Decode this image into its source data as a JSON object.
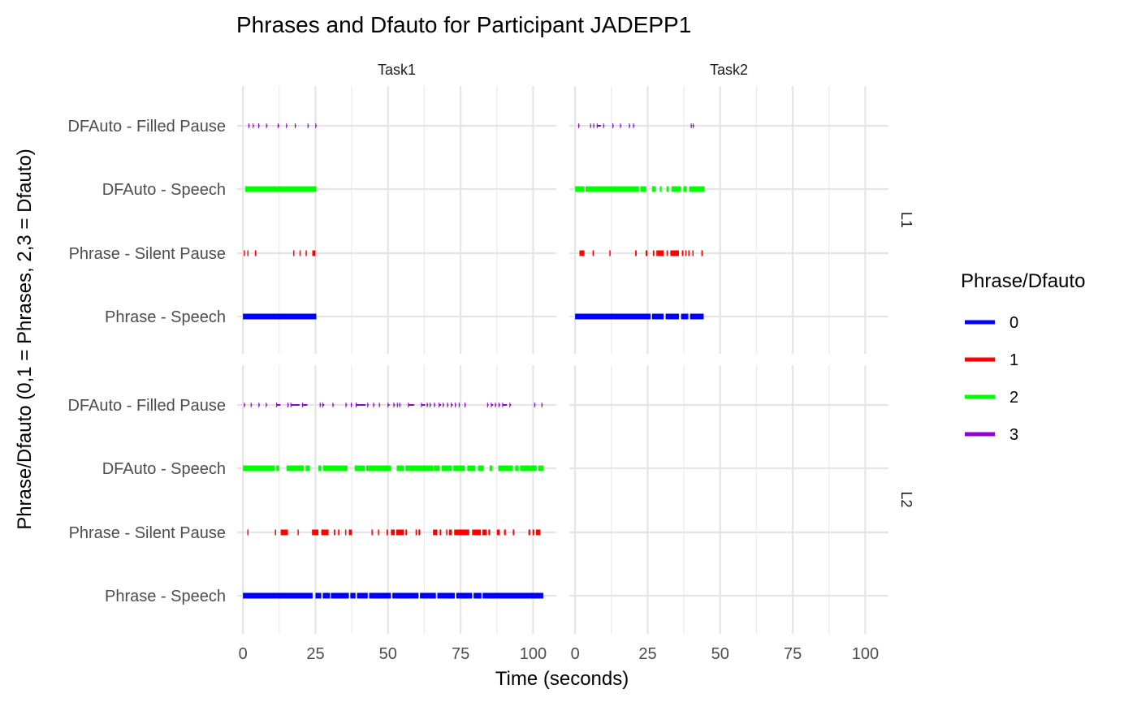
{
  "chart_data": {
    "type": "scatter",
    "title": "Phrases and Dfauto for Participant JADEPP1",
    "xlabel": "Time (seconds)",
    "ylabel": "Phrase/Dfauto (0,1 = Phrases, 2,3 = Dfauto)",
    "xlim": [
      -2,
      108
    ],
    "x_ticks": [
      0,
      25,
      50,
      75,
      100
    ],
    "grid": true,
    "facet_columns": [
      "Task1",
      "Task2"
    ],
    "facet_rows": [
      "L1",
      "L2"
    ],
    "categories": [
      "Phrase - Speech",
      "Phrase - Silent Pause",
      "DFAuto - Speech",
      "DFAuto - Filled Pause"
    ],
    "legend": {
      "title": "Phrase/Dfauto",
      "position": "right",
      "entries": [
        {
          "label": "0",
          "color": "#0000ff"
        },
        {
          "label": "1",
          "color": "#ff0000"
        },
        {
          "label": "2",
          "color": "#00ff00"
        },
        {
          "label": "3",
          "color": "#9400d3"
        }
      ]
    },
    "panels": [
      {
        "column": "Task1",
        "row": "L1",
        "series": [
          {
            "code": "0",
            "category": "Phrase - Speech",
            "segments": [
              [
                0,
                25.3
              ]
            ]
          },
          {
            "code": "1",
            "category": "Phrase - Silent Pause",
            "segments": [
              [
                0.3,
                0.7
              ],
              [
                1.5,
                1.9
              ],
              [
                4.1,
                4.6
              ],
              [
                17.3,
                17.7
              ],
              [
                19.5,
                19.9
              ],
              [
                21.6,
                22.0
              ],
              [
                23.9,
                25.0
              ]
            ]
          },
          {
            "code": "2",
            "category": "DFAuto - Speech",
            "segments": [
              [
                0.8,
                25.3
              ]
            ]
          },
          {
            "code": "3",
            "category": "DFAuto - Filled Pause",
            "segments": [
              [
                2.0,
                2.3
              ],
              [
                3.5,
                3.8
              ],
              [
                5.4,
                5.7
              ],
              [
                8.1,
                8.4
              ],
              [
                12.1,
                12.5
              ],
              [
                15.0,
                15.3
              ],
              [
                18.0,
                18.3
              ],
              [
                22.4,
                22.7
              ],
              [
                25.1,
                25.4
              ]
            ]
          }
        ]
      },
      {
        "column": "Task2",
        "row": "L1",
        "series": [
          {
            "code": "0",
            "category": "Phrase - Speech",
            "segments": [
              [
                0,
                26.0
              ],
              [
                26.5,
                30.5
              ],
              [
                31.2,
                35.8
              ],
              [
                36.5,
                39.0
              ],
              [
                39.6,
                44.3
              ]
            ]
          },
          {
            "code": "1",
            "category": "Phrase - Silent Pause",
            "segments": [
              [
                1.5,
                3.2
              ],
              [
                6.0,
                6.4
              ],
              [
                11.8,
                12.2
              ],
              [
                20.7,
                21.2
              ],
              [
                24.3,
                24.9
              ],
              [
                26.8,
                27.3
              ],
              [
                28.0,
                30.5
              ],
              [
                31.5,
                32.0
              ],
              [
                32.8,
                35.8
              ],
              [
                36.8,
                37.3
              ],
              [
                38.0,
                38.4
              ],
              [
                39.0,
                39.4
              ],
              [
                40.4,
                40.8
              ],
              [
                43.5,
                44.0
              ]
            ]
          },
          {
            "code": "2",
            "category": "DFAuto - Speech",
            "segments": [
              [
                0,
                3.2
              ],
              [
                3.6,
                22.0
              ],
              [
                22.5,
                24.5
              ],
              [
                26.5,
                27.8
              ],
              [
                29.2,
                29.8
              ],
              [
                31.5,
                32.2
              ],
              [
                33.2,
                36.5
              ],
              [
                37.3,
                38.5
              ],
              [
                39.3,
                44.6
              ]
            ]
          },
          {
            "code": "3",
            "category": "DFAuto - Filled Pause",
            "segments": [
              [
                1.2,
                1.5
              ],
              [
                5.3,
                5.6
              ],
              [
                6.4,
                6.7
              ],
              [
                7.6,
                8.9
              ],
              [
                9.8,
                10.1
              ],
              [
                13.0,
                13.3
              ],
              [
                15.6,
                15.9
              ],
              [
                18.7,
                19.0
              ],
              [
                20.1,
                20.4
              ],
              [
                40.0,
                40.3
              ],
              [
                40.7,
                41.0
              ]
            ]
          }
        ]
      },
      {
        "column": "Task1",
        "row": "L2",
        "series": [
          {
            "code": "0",
            "category": "Phrase - Speech",
            "segments": [
              [
                0,
                24.0
              ],
              [
                25.0,
                27.0
              ],
              [
                27.5,
                30.0
              ],
              [
                30.3,
                36.5
              ],
              [
                37.0,
                38.8
              ],
              [
                39.3,
                43.0
              ],
              [
                43.5,
                51.0
              ],
              [
                51.5,
                60.5
              ],
              [
                61.0,
                66.5
              ],
              [
                67.0,
                73.0
              ],
              [
                73.5,
                79.0
              ],
              [
                79.5,
                82.2
              ],
              [
                82.6,
                103.5
              ]
            ]
          },
          {
            "code": "1",
            "category": "Phrase - Silent Pause",
            "segments": [
              [
                1.5,
                1.9
              ],
              [
                11.0,
                11.4
              ],
              [
                13.0,
                15.5
              ],
              [
                18.8,
                19.2
              ],
              [
                23.8,
                26.0
              ],
              [
                27.0,
                29.5
              ],
              [
                31.3,
                31.8
              ],
              [
                32.8,
                33.3
              ],
              [
                35.2,
                35.6
              ],
              [
                36.5,
                37.5
              ],
              [
                44.3,
                44.7
              ],
              [
                46.5,
                46.9
              ],
              [
                49.5,
                50.0
              ],
              [
                51.0,
                52.3
              ],
              [
                52.8,
                55.5
              ],
              [
                56.0,
                56.5
              ],
              [
                59.5,
                60.0
              ],
              [
                60.5,
                61.1
              ],
              [
                65.5,
                67.0
              ],
              [
                67.8,
                68.3
              ],
              [
                70.0,
                70.4
              ],
              [
                71.0,
                72.0
              ],
              [
                72.8,
                78.0
              ],
              [
                79.0,
                82.0
              ],
              [
                82.5,
                84.0
              ],
              [
                84.6,
                85.2
              ],
              [
                87.5,
                88.5
              ],
              [
                90.0,
                90.6
              ],
              [
                93.0,
                93.5
              ],
              [
                98.4,
                99.0
              ],
              [
                99.8,
                100.4
              ],
              [
                101.0,
                102.5
              ]
            ]
          },
          {
            "code": "2",
            "category": "DFAuto - Speech",
            "segments": [
              [
                0,
                11.0
              ],
              [
                11.5,
                12.5
              ],
              [
                15.0,
                21.0
              ],
              [
                21.6,
                23.0
              ],
              [
                26.0,
                27.0
              ],
              [
                27.6,
                36.0
              ],
              [
                38.5,
                42.0
              ],
              [
                42.5,
                51.0
              ],
              [
                53.0,
                55.5
              ],
              [
                56.0,
                65.5
              ],
              [
                65.8,
                67.8
              ],
              [
                68.5,
                72.0
              ],
              [
                72.5,
                76.5
              ],
              [
                77.3,
                80.0
              ],
              [
                81.0,
                83.0
              ],
              [
                85.0,
                86.0
              ],
              [
                88.0,
                93.0
              ],
              [
                93.8,
                95.0
              ],
              [
                95.5,
                101.2
              ],
              [
                101.8,
                103.5
              ]
            ]
          },
          {
            "code": "3",
            "category": "DFAuto - Filled Pause",
            "segments": [
              [
                0.5,
                0.8
              ],
              [
                2.8,
                3.1
              ],
              [
                5.5,
                5.8
              ],
              [
                8.0,
                8.3
              ],
              [
                11.6,
                12.9
              ],
              [
                15.5,
                15.8
              ],
              [
                16.5,
                19.5
              ],
              [
                20.5,
                22.2
              ],
              [
                26.6,
                26.9
              ],
              [
                27.5,
                28.0
              ],
              [
                31.0,
                31.3
              ],
              [
                35.5,
                35.8
              ],
              [
                37.3,
                37.6
              ],
              [
                39.0,
                42.3
              ],
              [
                43.0,
                43.3
              ],
              [
                45.0,
                45.3
              ],
              [
                47.0,
                47.3
              ],
              [
                50.0,
                50.5
              ],
              [
                52.0,
                52.4
              ],
              [
                53.2,
                53.5
              ],
              [
                54.0,
                54.3
              ],
              [
                57.0,
                59.0
              ],
              [
                61.5,
                62.8
              ],
              [
                63.5,
                63.8
              ],
              [
                64.5,
                64.8
              ],
              [
                66.0,
                66.3
              ],
              [
                67.6,
                68.3
              ],
              [
                69.0,
                69.3
              ],
              [
                70.5,
                70.8
              ],
              [
                71.8,
                72.3
              ],
              [
                73.2,
                73.5
              ],
              [
                74.5,
                74.8
              ],
              [
                76.5,
                76.8
              ],
              [
                84.3,
                84.6
              ],
              [
                85.6,
                86.2
              ],
              [
                87.0,
                87.3
              ],
              [
                88.2,
                88.6
              ],
              [
                89.5,
                91.0
              ],
              [
                92.0,
                92.4
              ],
              [
                100.5,
                100.8
              ],
              [
                103.0,
                103.3
              ]
            ]
          }
        ]
      },
      {
        "column": "Task2",
        "row": "L2",
        "series": []
      }
    ]
  }
}
